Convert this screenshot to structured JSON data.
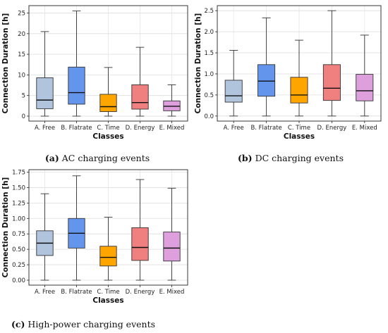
{
  "chart_data": [
    {
      "type": "box",
      "xlabel": "Classes",
      "ylabel": "Connection Duration [h]",
      "ylim": [
        -1.2,
        26.8
      ],
      "yticks": [
        0,
        5,
        10,
        15,
        20,
        25
      ],
      "grid": true,
      "categories": [
        "A. Free",
        "B. Flatrate",
        "C. Time",
        "D. Energy",
        "E. Mixed"
      ],
      "colors": [
        "#b0c4de",
        "#6495ed",
        "#ffa500",
        "#f08080",
        "#dda0dd"
      ],
      "boxes": [
        {
          "min": 0,
          "q1": 1.8,
          "median": 3.9,
          "q3": 9.3,
          "max": 20.5
        },
        {
          "min": 0,
          "q1": 2.9,
          "median": 5.7,
          "q3": 11.9,
          "max": 25.5
        },
        {
          "min": 0,
          "q1": 1.1,
          "median": 2.3,
          "q3": 5.3,
          "max": 11.8
        },
        {
          "min": 0,
          "q1": 1.7,
          "median": 3.3,
          "q3": 7.6,
          "max": 16.7
        },
        {
          "min": 0,
          "q1": 1.3,
          "median": 2.4,
          "q3": 3.7,
          "max": 7.6
        }
      ],
      "caption_letter": "(a)",
      "caption_text": "AC charging events"
    },
    {
      "type": "box",
      "xlabel": "Classes",
      "ylabel": "Connection Duration [h]",
      "ylim": [
        -0.12,
        2.62
      ],
      "yticks": [
        0.0,
        0.5,
        1.0,
        1.5,
        2.0,
        2.5
      ],
      "grid": true,
      "categories": [
        "A. Free",
        "B. Flatrate",
        "C. Time",
        "D. Energy",
        "E. Mixed"
      ],
      "colors": [
        "#b0c4de",
        "#6495ed",
        "#ffa500",
        "#f08080",
        "#dda0dd"
      ],
      "boxes": [
        {
          "min": 0,
          "q1": 0.33,
          "median": 0.48,
          "q3": 0.85,
          "max": 1.56
        },
        {
          "min": 0,
          "q1": 0.47,
          "median": 0.83,
          "q3": 1.22,
          "max": 2.33
        },
        {
          "min": 0,
          "q1": 0.31,
          "median": 0.5,
          "q3": 0.92,
          "max": 1.8
        },
        {
          "min": 0,
          "q1": 0.37,
          "median": 0.66,
          "q3": 1.22,
          "max": 2.5
        },
        {
          "min": 0,
          "q1": 0.36,
          "median": 0.6,
          "q3": 0.99,
          "max": 1.92
        }
      ],
      "caption_letter": "(b)",
      "caption_text": "DC charging events"
    },
    {
      "type": "box",
      "xlabel": "Classes",
      "ylabel": "Connection Duration [h]",
      "ylim": [
        -0.08,
        1.79
      ],
      "yticks": [
        0.0,
        0.25,
        0.5,
        0.75,
        1.0,
        1.25,
        1.5,
        1.75
      ],
      "grid": true,
      "categories": [
        "A. Free",
        "B. Flatrate",
        "C. Time",
        "D. Energy",
        "E. Mixed"
      ],
      "colors": [
        "#b0c4de",
        "#6495ed",
        "#ffa500",
        "#f08080",
        "#dda0dd"
      ],
      "boxes": [
        {
          "min": 0,
          "q1": 0.4,
          "median": 0.6,
          "q3": 0.8,
          "max": 1.4
        },
        {
          "min": 0,
          "q1": 0.52,
          "median": 0.76,
          "q3": 1.0,
          "max": 1.69
        },
        {
          "min": 0,
          "q1": 0.23,
          "median": 0.37,
          "q3": 0.55,
          "max": 1.02
        },
        {
          "min": 0,
          "q1": 0.32,
          "median": 0.53,
          "q3": 0.85,
          "max": 1.63
        },
        {
          "min": 0,
          "q1": 0.31,
          "median": 0.52,
          "q3": 0.78,
          "max": 1.49
        }
      ],
      "caption_letter": "(c)",
      "caption_text": "High-power charging events"
    }
  ]
}
